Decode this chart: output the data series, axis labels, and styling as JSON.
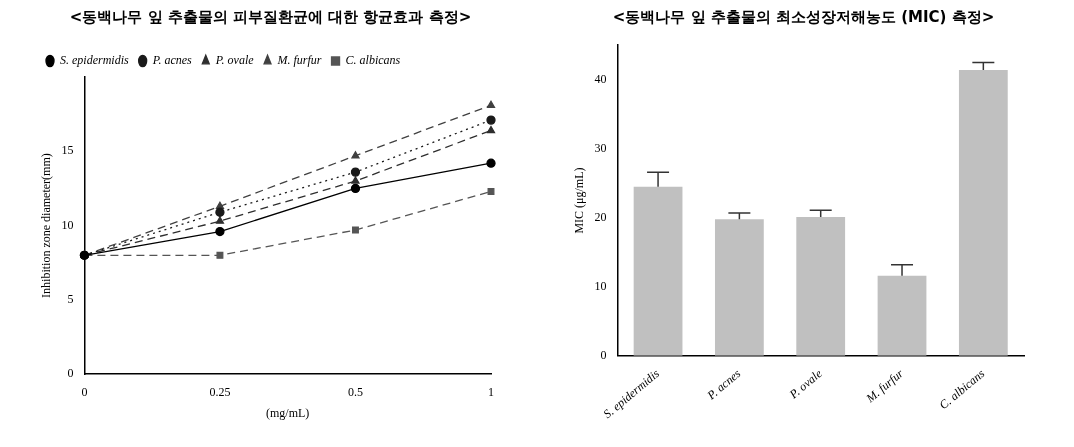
{
  "chart_data": [
    {
      "type": "line",
      "title": "<동백나무 잎 추출물의 피부질환균에 대한 항균효과 측정>",
      "xlabel": "(mg/mL)",
      "ylabel": "Inhibition zone diameter(mm)",
      "categories": [
        "0",
        "0.25",
        "0.5",
        "1"
      ],
      "ylim": [
        0,
        20
      ],
      "yticks": [
        0,
        5,
        10,
        15
      ],
      "grid": false,
      "legend": "top left",
      "series": [
        {
          "name": "S. epidermidis",
          "color": "#000000",
          "marker": "circle",
          "line_style": "solid",
          "values": [
            8,
            9.6,
            12.5,
            14.2
          ]
        },
        {
          "name": "P. acnes",
          "color": "#1a1a1a",
          "marker": "circle",
          "line_style": "dotted",
          "values": [
            8,
            10.9,
            13.6,
            17.1
          ]
        },
        {
          "name": "P. ovale",
          "color": "#2e2e2e",
          "marker": "triangle",
          "line_style": "dashed",
          "values": [
            8,
            10.3,
            13.0,
            16.4
          ]
        },
        {
          "name": "M. furfur",
          "color": "#404040",
          "marker": "triangle",
          "line_style": "dashed",
          "values": [
            8,
            11.3,
            14.7,
            18.1
          ]
        },
        {
          "name": "C. albicans",
          "color": "#555555",
          "marker": "square",
          "line_style": "dashed",
          "values": [
            8,
            8,
            9.7,
            12.3
          ]
        }
      ]
    },
    {
      "type": "bar",
      "title": "<동백나무 잎 추출물의 최소성장저해농도 (MIC) 측정>",
      "ylabel": "MIC (μg/mL)",
      "categories": [
        "S. epidermidis",
        "P. acnes",
        "P. ovale",
        "M. furfur",
        "C. albicans"
      ],
      "values": [
        24.5,
        19.8,
        20.1,
        11.6,
        41.4
      ],
      "color": "#c0c0c0",
      "errors": [
        [
          24.5,
          26.6
        ],
        [
          19.8,
          20.7
        ],
        [
          20.1,
          21.1
        ],
        [
          11.6,
          13.2
        ],
        [
          41.4,
          42.5
        ]
      ],
      "ylim": [
        0,
        45
      ],
      "yticks": [
        0,
        10,
        20,
        30,
        40
      ],
      "grid": false,
      "legend": false
    }
  ]
}
